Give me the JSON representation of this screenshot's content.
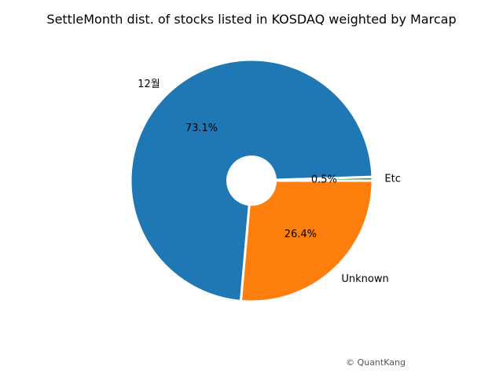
{
  "chart_data": {
    "type": "pie",
    "title": "SettleMonth dist. of stocks listed in KOSDAQ weighted by Marcap",
    "labels": [
      "Etc",
      "12월",
      "Unknown"
    ],
    "values": [
      0.5,
      73.1,
      26.4
    ],
    "percent_labels": [
      "0.5%",
      "73.1%",
      "26.4%"
    ],
    "colors": [
      "#2ca02c",
      "#1f77b4",
      "#ff7f0e"
    ],
    "start_angle_deg": 0,
    "direction": "counterclockwise",
    "donut_hole": true,
    "legend": "none"
  },
  "credit": "© QuantKang"
}
